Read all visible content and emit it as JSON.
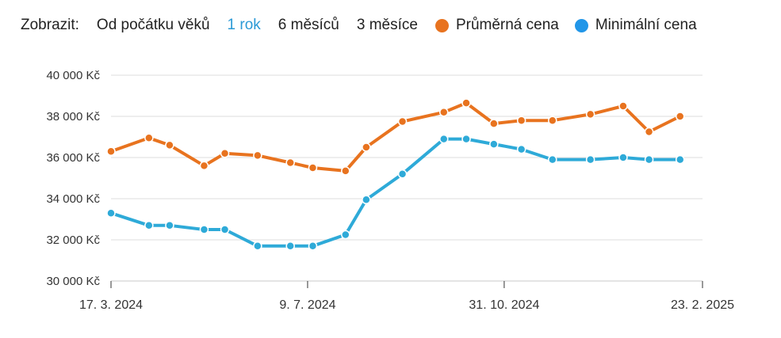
{
  "toolbar": {
    "label": "Zobrazit:",
    "ranges": [
      "Od počátku věků",
      "1 rok",
      "6 měsíců",
      "3 měsíce"
    ],
    "active_range": "1 rok",
    "accent_color": "#2b9ad6"
  },
  "chart_data": {
    "type": "line",
    "series": [
      {
        "name": "Průměrná cena",
        "color": "#e8731f",
        "x": [
          "2024-03-17",
          "2024-04-08",
          "2024-04-20",
          "2024-05-10",
          "2024-05-22",
          "2024-06-10",
          "2024-06-29",
          "2024-07-12",
          "2024-07-31",
          "2024-08-12",
          "2024-09-02",
          "2024-09-26",
          "2024-10-09",
          "2024-10-25",
          "2024-11-10",
          "2024-11-28",
          "2024-12-20",
          "2025-01-08",
          "2025-01-23",
          "2025-02-10",
          "2025-02-23"
        ],
        "values": [
          36300,
          36950,
          36600,
          35600,
          36200,
          36100,
          35750,
          35500,
          35350,
          36500,
          37750,
          38200,
          38650,
          37650,
          37800,
          37800,
          38100,
          38500,
          37250,
          38000,
          null
        ]
      },
      {
        "name": "Minimální cena",
        "color": "#2eaad8",
        "x": [
          "2024-03-17",
          "2024-04-08",
          "2024-04-20",
          "2024-05-10",
          "2024-05-22",
          "2024-06-10",
          "2024-06-29",
          "2024-07-12",
          "2024-07-31",
          "2024-08-12",
          "2024-09-02",
          "2024-09-26",
          "2024-10-09",
          "2024-10-25",
          "2024-11-10",
          "2024-11-28",
          "2024-12-20",
          "2025-01-08",
          "2025-01-23",
          "2025-02-10",
          "2025-02-23"
        ],
        "values": [
          33300,
          32700,
          32700,
          32500,
          32500,
          31700,
          31700,
          31700,
          32250,
          33950,
          35200,
          36900,
          36900,
          36650,
          36400,
          35900,
          35900,
          36000,
          35900,
          35900,
          null
        ]
      }
    ],
    "y_ticks": [
      "30 000 Kč",
      "32 000 Kč",
      "34 000 Kč",
      "36 000 Kč",
      "38 000 Kč",
      "40 000 Kč"
    ],
    "y_tick_values": [
      30000,
      32000,
      34000,
      36000,
      38000,
      40000
    ],
    "ylim": [
      30000,
      40000
    ],
    "x_ticks": [
      "17. 3. 2024",
      "9. 7. 2024",
      "31. 10. 2024",
      "23. 2. 2025"
    ],
    "x_tick_dates": [
      "2024-03-17",
      "2024-07-09",
      "2024-10-31",
      "2025-02-23"
    ],
    "xlim": [
      "2024-03-17",
      "2025-02-23"
    ],
    "grid": true,
    "legend_position": "top-right"
  }
}
